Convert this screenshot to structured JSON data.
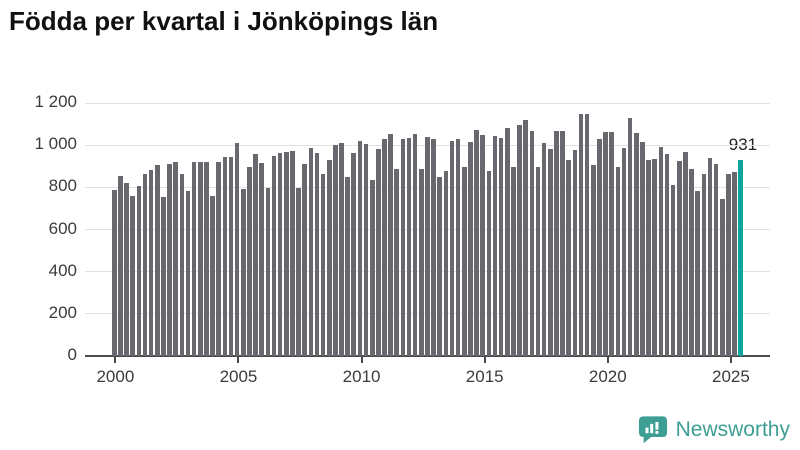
{
  "title": "Födda per kvartal i Jönköpings län",
  "annotation": {
    "label": "931"
  },
  "branding": {
    "logo_text": "Newsworthy",
    "logo_color": "#3d9e93",
    "logo_icon": "speech-bubble-bar-chart-icon"
  },
  "chart_data": {
    "type": "bar",
    "title": "Födda per kvartal i Jönköpings län",
    "xlabel": "",
    "ylabel": "",
    "period_start": "2000-Q1",
    "period_end": "2025-Q3",
    "x_tick_labels": [
      "2000",
      "2005",
      "2010",
      "2015",
      "2020",
      "2025"
    ],
    "y_ticks": [
      0,
      200,
      400,
      600,
      800,
      1000,
      1200
    ],
    "y_tick_labels": [
      "0",
      "200",
      "400",
      "600",
      "800",
      "1 000",
      "1 200"
    ],
    "ylim": [
      0,
      1200
    ],
    "grid": "horizontal",
    "legend": "none",
    "bar_color": "#68686f",
    "highlight_color": "#0ea5a0",
    "highlight_index": 102,
    "highlight_value": 931,
    "values": [
      788,
      852,
      822,
      758,
      806,
      862,
      884,
      907,
      753,
      913,
      919,
      862,
      782,
      918,
      920,
      919,
      758,
      921,
      943,
      945,
      1008,
      790,
      898,
      956,
      917,
      795,
      948,
      964,
      968,
      973,
      795,
      909,
      988,
      964,
      863,
      929,
      1000,
      1011,
      847,
      964,
      1022,
      1006,
      833,
      983,
      1030,
      1054,
      888,
      1027,
      1033,
      1054,
      888,
      1040,
      1028,
      850,
      877,
      1021,
      1027,
      898,
      1016,
      1074,
      1050,
      877,
      1043,
      1035,
      1083,
      898,
      1094,
      1118,
      1068,
      898,
      1008,
      980,
      1066,
      1066,
      932,
      976,
      1150,
      1150,
      906,
      1028,
      1063,
      1063,
      898,
      989,
      1129,
      1060,
      1013,
      930,
      935,
      992,
      956,
      810,
      925,
      968,
      885,
      785,
      865,
      938,
      912,
      745,
      864,
      875,
      931
    ]
  }
}
